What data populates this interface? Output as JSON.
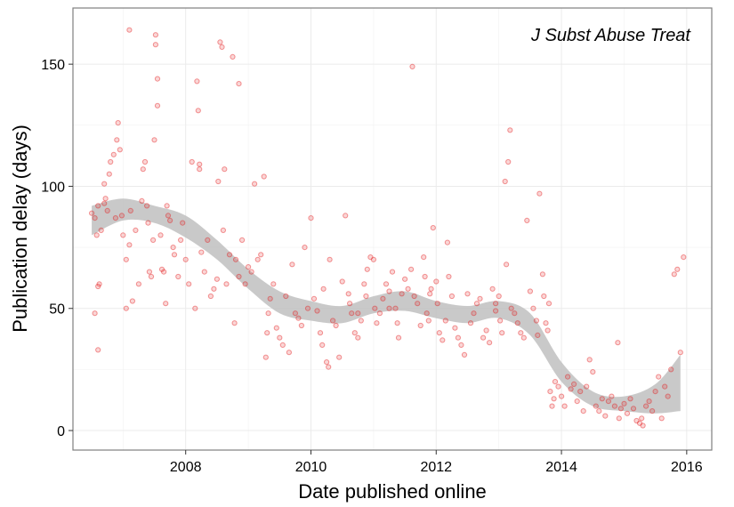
{
  "chart_data": {
    "type": "scatter",
    "title": "",
    "annotation": "J Subst Abuse Treat",
    "xlabel": "Date published online",
    "ylabel": "Publication delay (days)",
    "xlim": [
      2006.2,
      2016.4
    ],
    "ylim": [
      -8,
      173
    ],
    "x_ticks": [
      {
        "value": 2008,
        "label": "2008"
      },
      {
        "value": 2010,
        "label": "2010"
      },
      {
        "value": 2012,
        "label": "2012"
      },
      {
        "value": 2014,
        "label": "2014"
      },
      {
        "value": 2016,
        "label": "2016"
      }
    ],
    "y_ticks": [
      {
        "value": 0,
        "label": "0"
      },
      {
        "value": 50,
        "label": "50"
      },
      {
        "value": 100,
        "label": "100"
      },
      {
        "value": 150,
        "label": "150"
      }
    ],
    "grid": true,
    "point_color": "#e41a1c",
    "smooth_band_color": "#bfbfbf",
    "smooth": [
      {
        "x": 2006.5,
        "lo": 80,
        "hi": 92
      },
      {
        "x": 2007.0,
        "lo": 86,
        "hi": 95
      },
      {
        "x": 2007.5,
        "lo": 85,
        "hi": 92
      },
      {
        "x": 2008.0,
        "lo": 79,
        "hi": 88
      },
      {
        "x": 2008.5,
        "lo": 70,
        "hi": 78
      },
      {
        "x": 2009.0,
        "lo": 58,
        "hi": 66
      },
      {
        "x": 2009.5,
        "lo": 48,
        "hi": 57
      },
      {
        "x": 2010.0,
        "lo": 45,
        "hi": 53
      },
      {
        "x": 2010.5,
        "lo": 44,
        "hi": 51
      },
      {
        "x": 2011.0,
        "lo": 48,
        "hi": 55
      },
      {
        "x": 2011.5,
        "lo": 49,
        "hi": 57
      },
      {
        "x": 2012.0,
        "lo": 46,
        "hi": 53
      },
      {
        "x": 2012.5,
        "lo": 44,
        "hi": 51
      },
      {
        "x": 2013.0,
        "lo": 46,
        "hi": 53
      },
      {
        "x": 2013.5,
        "lo": 39,
        "hi": 48
      },
      {
        "x": 2014.0,
        "lo": 20,
        "hi": 28
      },
      {
        "x": 2014.5,
        "lo": 10,
        "hi": 16
      },
      {
        "x": 2015.0,
        "lo": 8,
        "hi": 14
      },
      {
        "x": 2015.5,
        "lo": 7,
        "hi": 19
      },
      {
        "x": 2015.9,
        "lo": 8,
        "hi": 31
      }
    ],
    "points": [
      [
        2006.5,
        89
      ],
      [
        2006.55,
        87
      ],
      [
        2006.6,
        59
      ],
      [
        2006.62,
        60
      ],
      [
        2006.58,
        80
      ],
      [
        2006.6,
        92
      ],
      [
        2006.65,
        82
      ],
      [
        2006.7,
        93
      ],
      [
        2006.72,
        95
      ],
      [
        2006.75,
        90
      ],
      [
        2006.6,
        33
      ],
      [
        2006.55,
        48
      ],
      [
        2006.7,
        101
      ],
      [
        2006.78,
        105
      ],
      [
        2006.8,
        110
      ],
      [
        2006.85,
        113
      ],
      [
        2006.9,
        119
      ],
      [
        2006.92,
        126
      ],
      [
        2006.95,
        115
      ],
      [
        2006.88,
        87
      ],
      [
        2006.98,
        88
      ],
      [
        2007.0,
        80
      ],
      [
        2007.05,
        70
      ],
      [
        2007.05,
        50
      ],
      [
        2007.1,
        76
      ],
      [
        2007.12,
        90
      ],
      [
        2007.15,
        53
      ],
      [
        2007.2,
        82
      ],
      [
        2007.25,
        60
      ],
      [
        2007.1,
        164
      ],
      [
        2007.3,
        94
      ],
      [
        2007.32,
        107
      ],
      [
        2007.35,
        110
      ],
      [
        2007.38,
        92
      ],
      [
        2007.4,
        85
      ],
      [
        2007.42,
        65
      ],
      [
        2007.45,
        63
      ],
      [
        2007.48,
        78
      ],
      [
        2007.5,
        119
      ],
      [
        2007.52,
        162
      ],
      [
        2007.52,
        158
      ],
      [
        2007.55,
        144
      ],
      [
        2007.55,
        133
      ],
      [
        2007.6,
        80
      ],
      [
        2007.62,
        66
      ],
      [
        2007.65,
        65
      ],
      [
        2007.68,
        52
      ],
      [
        2007.7,
        92
      ],
      [
        2007.72,
        88
      ],
      [
        2007.75,
        86
      ],
      [
        2007.8,
        75
      ],
      [
        2007.82,
        72
      ],
      [
        2007.88,
        63
      ],
      [
        2007.92,
        78
      ],
      [
        2007.95,
        85
      ],
      [
        2008.0,
        70
      ],
      [
        2008.05,
        60
      ],
      [
        2008.1,
        110
      ],
      [
        2008.15,
        50
      ],
      [
        2008.18,
        143
      ],
      [
        2008.2,
        131
      ],
      [
        2008.22,
        109
      ],
      [
        2008.22,
        107
      ],
      [
        2008.25,
        73
      ],
      [
        2008.3,
        65
      ],
      [
        2008.35,
        78
      ],
      [
        2008.4,
        55
      ],
      [
        2008.45,
        58
      ],
      [
        2008.5,
        62
      ],
      [
        2008.52,
        102
      ],
      [
        2008.55,
        159
      ],
      [
        2008.58,
        157
      ],
      [
        2008.6,
        82
      ],
      [
        2008.62,
        107
      ],
      [
        2008.65,
        60
      ],
      [
        2008.7,
        72
      ],
      [
        2008.75,
        153
      ],
      [
        2008.78,
        44
      ],
      [
        2008.8,
        70
      ],
      [
        2008.85,
        63
      ],
      [
        2008.85,
        142
      ],
      [
        2008.9,
        78
      ],
      [
        2008.95,
        60
      ],
      [
        2009.0,
        67
      ],
      [
        2009.05,
        65
      ],
      [
        2009.1,
        101
      ],
      [
        2009.15,
        70
      ],
      [
        2009.2,
        72
      ],
      [
        2009.25,
        104
      ],
      [
        2009.28,
        30
      ],
      [
        2009.3,
        40
      ],
      [
        2009.32,
        48
      ],
      [
        2009.35,
        54
      ],
      [
        2009.4,
        60
      ],
      [
        2009.45,
        42
      ],
      [
        2009.5,
        38
      ],
      [
        2009.55,
        35
      ],
      [
        2009.6,
        55
      ],
      [
        2009.65,
        32
      ],
      [
        2009.7,
        68
      ],
      [
        2009.75,
        48
      ],
      [
        2009.8,
        46
      ],
      [
        2009.85,
        43
      ],
      [
        2009.9,
        75
      ],
      [
        2009.95,
        50
      ],
      [
        2010.0,
        87
      ],
      [
        2010.05,
        54
      ],
      [
        2010.1,
        49
      ],
      [
        2010.15,
        40
      ],
      [
        2010.18,
        35
      ],
      [
        2010.2,
        58
      ],
      [
        2010.25,
        28
      ],
      [
        2010.28,
        26
      ],
      [
        2010.3,
        70
      ],
      [
        2010.35,
        45
      ],
      [
        2010.4,
        43
      ],
      [
        2010.45,
        30
      ],
      [
        2010.5,
        61
      ],
      [
        2010.55,
        88
      ],
      [
        2010.6,
        56
      ],
      [
        2010.62,
        52
      ],
      [
        2010.65,
        48
      ],
      [
        2010.7,
        40
      ],
      [
        2010.75,
        38
      ],
      [
        2010.8,
        45
      ],
      [
        2010.85,
        60
      ],
      [
        2010.88,
        55
      ],
      [
        2010.9,
        66
      ],
      [
        2010.95,
        71
      ],
      [
        2011.0,
        70
      ],
      [
        2011.02,
        50
      ],
      [
        2011.05,
        44
      ],
      [
        2011.1,
        48
      ],
      [
        2011.15,
        54
      ],
      [
        2011.2,
        60
      ],
      [
        2011.25,
        57
      ],
      [
        2011.3,
        65
      ],
      [
        2011.35,
        50
      ],
      [
        2011.38,
        44
      ],
      [
        2011.4,
        38
      ],
      [
        2011.45,
        56
      ],
      [
        2011.5,
        62
      ],
      [
        2011.55,
        58
      ],
      [
        2011.6,
        66
      ],
      [
        2011.62,
        149
      ],
      [
        2011.65,
        55
      ],
      [
        2011.7,
        52
      ],
      [
        2011.75,
        43
      ],
      [
        2011.8,
        71
      ],
      [
        2011.82,
        63
      ],
      [
        2011.85,
        48
      ],
      [
        2011.88,
        45
      ],
      [
        2011.9,
        56
      ],
      [
        2011.92,
        58
      ],
      [
        2011.95,
        83
      ],
      [
        2012.0,
        61
      ],
      [
        2012.02,
        52
      ],
      [
        2012.05,
        40
      ],
      [
        2012.1,
        37
      ],
      [
        2012.15,
        45
      ],
      [
        2012.18,
        77
      ],
      [
        2012.2,
        63
      ],
      [
        2012.25,
        55
      ],
      [
        2012.3,
        42
      ],
      [
        2012.35,
        38
      ],
      [
        2012.4,
        35
      ],
      [
        2012.45,
        31
      ],
      [
        2012.5,
        56
      ],
      [
        2012.55,
        44
      ],
      [
        2012.6,
        48
      ],
      [
        2012.65,
        52
      ],
      [
        2012.7,
        54
      ],
      [
        2012.75,
        38
      ],
      [
        2012.8,
        41
      ],
      [
        2012.85,
        36
      ],
      [
        2012.9,
        58
      ],
      [
        2012.95,
        52
      ],
      [
        2013.0,
        55
      ],
      [
        2013.02,
        45
      ],
      [
        2013.05,
        40
      ],
      [
        2013.1,
        102
      ],
      [
        2013.12,
        68
      ],
      [
        2013.15,
        110
      ],
      [
        2013.18,
        123
      ],
      [
        2013.2,
        50
      ],
      [
        2013.25,
        48
      ],
      [
        2013.3,
        44
      ],
      [
        2013.35,
        40
      ],
      [
        2013.4,
        38
      ],
      [
        2013.45,
        86
      ],
      [
        2013.5,
        57
      ],
      [
        2013.55,
        50
      ],
      [
        2013.6,
        45
      ],
      [
        2013.62,
        39
      ],
      [
        2013.65,
        97
      ],
      [
        2013.7,
        64
      ],
      [
        2013.72,
        55
      ],
      [
        2013.75,
        44
      ],
      [
        2013.78,
        41
      ],
      [
        2013.8,
        52
      ],
      [
        2013.82,
        16
      ],
      [
        2013.85,
        10
      ],
      [
        2013.88,
        13
      ],
      [
        2013.9,
        20
      ],
      [
        2013.95,
        18
      ],
      [
        2014.0,
        14
      ],
      [
        2014.05,
        10
      ],
      [
        2014.1,
        22
      ],
      [
        2014.15,
        17
      ],
      [
        2014.2,
        19
      ],
      [
        2014.25,
        12
      ],
      [
        2014.3,
        16
      ],
      [
        2014.35,
        8
      ],
      [
        2014.4,
        18
      ],
      [
        2014.45,
        29
      ],
      [
        2014.5,
        24
      ],
      [
        2014.55,
        10
      ],
      [
        2014.6,
        8
      ],
      [
        2014.65,
        13
      ],
      [
        2014.7,
        6
      ],
      [
        2014.75,
        12
      ],
      [
        2014.8,
        14
      ],
      [
        2014.85,
        10
      ],
      [
        2014.9,
        36
      ],
      [
        2014.92,
        5
      ],
      [
        2014.95,
        9
      ],
      [
        2015.0,
        11
      ],
      [
        2015.05,
        7
      ],
      [
        2015.1,
        13
      ],
      [
        2015.15,
        9
      ],
      [
        2015.2,
        4
      ],
      [
        2015.25,
        3
      ],
      [
        2015.28,
        5
      ],
      [
        2015.3,
        2
      ],
      [
        2015.35,
        10
      ],
      [
        2015.4,
        12
      ],
      [
        2015.45,
        8
      ],
      [
        2015.5,
        16
      ],
      [
        2015.55,
        22
      ],
      [
        2015.6,
        5
      ],
      [
        2015.65,
        18
      ],
      [
        2015.7,
        14
      ],
      [
        2015.75,
        25
      ],
      [
        2015.8,
        64
      ],
      [
        2015.85,
        66
      ],
      [
        2015.9,
        32
      ],
      [
        2015.95,
        71
      ],
      [
        2012.95,
        49
      ],
      [
        2011.25,
        50
      ],
      [
        2010.75,
        48
      ]
    ]
  }
}
